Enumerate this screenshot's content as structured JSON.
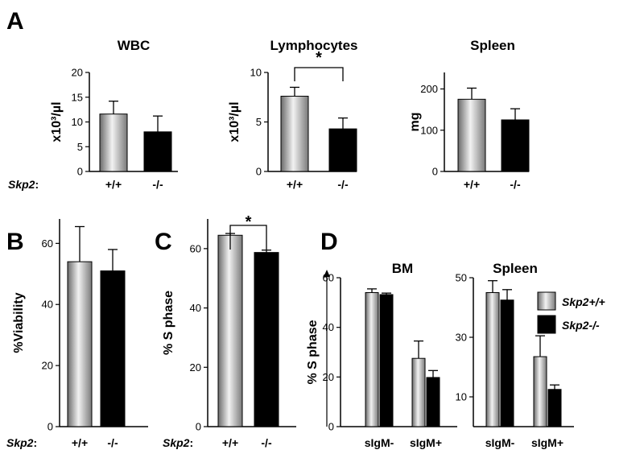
{
  "colors": {
    "bar_wt": "gradient-gray",
    "bar_ko": "#000000",
    "axis": "#000000"
  },
  "row_label": {
    "gene": "Skp2",
    "suffix": ":"
  },
  "legend": {
    "items": [
      {
        "label": "Skp2+/+",
        "fill": "gradient-gray"
      },
      {
        "label": "Skp2-/-",
        "fill": "#000000"
      }
    ]
  },
  "chart_data": [
    {
      "panel": "A",
      "title": "WBC",
      "type": "bar",
      "ylabel": "x10³/µl",
      "ylim": [
        0,
        20
      ],
      "yticks": [
        "0",
        "5",
        "10",
        "15",
        "20"
      ],
      "categories": [
        "+/+",
        "-/-"
      ],
      "values": [
        11.6,
        8.0
      ],
      "errors": [
        2.6,
        3.2
      ],
      "significance": ""
    },
    {
      "panel": "A",
      "title": "Lymphocytes",
      "type": "bar",
      "ylabel": "x10³/µl",
      "ylim": [
        0,
        10
      ],
      "yticks": [
        "0",
        "5",
        "10"
      ],
      "categories": [
        "+/+",
        "-/-"
      ],
      "values": [
        7.6,
        4.3
      ],
      "errors": [
        0.9,
        1.1
      ],
      "significance": "*"
    },
    {
      "panel": "A",
      "title": "Spleen",
      "type": "bar",
      "ylabel": "mg",
      "ylim": [
        0,
        240
      ],
      "yticks": [
        "0",
        "100",
        "200"
      ],
      "categories": [
        "+/+",
        "-/-"
      ],
      "values": [
        175,
        125
      ],
      "errors": [
        27,
        27
      ],
      "significance": ""
    },
    {
      "panel": "B",
      "title": "",
      "type": "bar",
      "ylabel": "%Viability",
      "ylim": [
        0,
        68
      ],
      "yticks": [
        "0",
        "20",
        "40",
        "60"
      ],
      "categories": [
        "+/+",
        "-/-"
      ],
      "values": [
        54,
        51
      ],
      "errors": [
        11.5,
        7.0
      ],
      "significance": ""
    },
    {
      "panel": "C",
      "title": "",
      "type": "bar",
      "ylabel": "% S phase",
      "ylim": [
        0,
        70
      ],
      "yticks": [
        "0",
        "20",
        "40",
        "60"
      ],
      "categories": [
        "+/+",
        "-/-"
      ],
      "values": [
        64.5,
        58.7
      ],
      "errors": [
        0.6,
        0.8
      ],
      "significance": "*"
    },
    {
      "panel": "D",
      "title": "BM",
      "type": "bar",
      "ylabel": "% S phase",
      "ylim": [
        0,
        60
      ],
      "yticks": [
        "0",
        "20",
        "40",
        "60"
      ],
      "categories": [
        "sIgM-",
        "sIgM+"
      ],
      "series": [
        {
          "name": "Skp2+/+",
          "values": [
            54,
            27.5
          ],
          "errors": [
            1.5,
            7.0
          ]
        },
        {
          "name": "Skp2-/-",
          "values": [
            53.2,
            19.8
          ],
          "errors": [
            0.6,
            2.8
          ]
        }
      ],
      "significance": ""
    },
    {
      "panel": "D",
      "title": "Spleen",
      "type": "bar",
      "ylabel": "",
      "ylim": [
        0,
        50
      ],
      "yticks": [
        "10",
        "30",
        "50"
      ],
      "categories": [
        "sIgM-",
        "sIgM+"
      ],
      "series": [
        {
          "name": "Skp2+/+",
          "values": [
            45,
            23.5
          ],
          "errors": [
            4.0,
            7.0
          ]
        },
        {
          "name": "Skp2-/-",
          "values": [
            42.5,
            12.5
          ],
          "errors": [
            3.5,
            1.5
          ]
        }
      ],
      "significance": ""
    }
  ],
  "panel_letters": [
    "A",
    "B",
    "C",
    "D"
  ]
}
